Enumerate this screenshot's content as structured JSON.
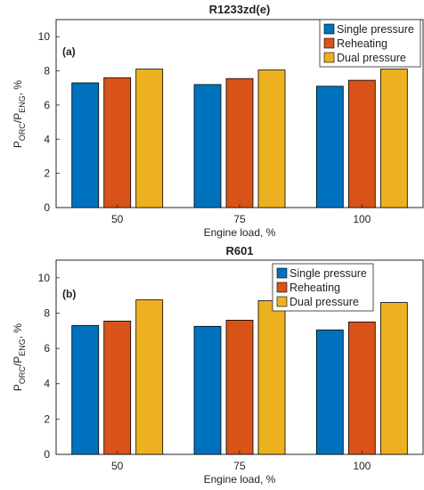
{
  "colors": {
    "series": [
      "#0072BD",
      "#D95319",
      "#EDB120"
    ],
    "axis": "#262626",
    "bar_edge": "#000000"
  },
  "chart_data": [
    {
      "type": "bar",
      "title": "R1233zd(e)",
      "panel_tag": "(a)",
      "categories": [
        "50",
        "75",
        "100"
      ],
      "series": [
        {
          "name": "Single pressure",
          "values": [
            7.3,
            7.2,
            7.1
          ]
        },
        {
          "name": "Reheating",
          "values": [
            7.6,
            7.55,
            7.45
          ]
        },
        {
          "name": "Dual pressure",
          "values": [
            8.1,
            8.05,
            8.1
          ]
        }
      ],
      "xlabel": "Engine load, %",
      "ylabel": {
        "p1": "P",
        "sub1": "ORC",
        "p2": "/P",
        "sub2": "ENG",
        "p3": ", %"
      },
      "ylim": [
        0,
        11
      ],
      "yticks": [
        "0",
        "2",
        "4",
        "6",
        "8",
        "10"
      ],
      "grid": false,
      "legend_position": "top-right"
    },
    {
      "type": "bar",
      "title": "R601",
      "panel_tag": "(b)",
      "categories": [
        "50",
        "75",
        "100"
      ],
      "series": [
        {
          "name": "Single pressure",
          "values": [
            7.3,
            7.25,
            7.05
          ]
        },
        {
          "name": "Reheating",
          "values": [
            7.55,
            7.6,
            7.5
          ]
        },
        {
          "name": "Dual pressure",
          "values": [
            8.75,
            8.7,
            8.6
          ]
        }
      ],
      "xlabel": "Engine load, %",
      "ylabel": {
        "p1": "P",
        "sub1": "ORC",
        "p2": "/P",
        "sub2": "ENG",
        "p3": ", %"
      },
      "ylim": [
        0,
        11
      ],
      "yticks": [
        "0",
        "2",
        "4",
        "6",
        "8",
        "10"
      ],
      "grid": false,
      "legend_position": "top-right"
    }
  ]
}
